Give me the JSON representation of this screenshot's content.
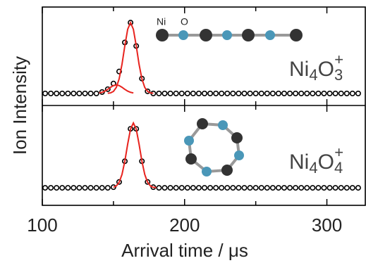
{
  "chart_data": [
    {
      "type": "scatter",
      "ylabel": "Ion Intensity",
      "formula": [
        "Ni",
        "4",
        "O",
        "3",
        "+"
      ],
      "atom_labels": [
        "Ni",
        "O"
      ],
      "xlim": [
        100,
        327
      ],
      "ylim": [
        -0.17,
        1.22
      ],
      "series": [
        {
          "mode": "markers",
          "color": "#000000",
          "x": [
            102,
            106,
            110,
            114,
            118,
            122,
            126,
            130,
            134,
            138,
            142,
            146,
            150,
            154,
            158,
            162,
            166,
            170,
            174,
            178,
            182,
            186,
            190,
            194,
            198,
            202,
            206,
            210,
            214,
            218,
            222,
            226,
            230,
            234,
            238,
            242,
            246,
            250,
            254,
            258,
            262,
            266,
            270,
            274,
            278,
            282,
            286,
            290,
            294,
            298,
            302,
            306,
            310,
            314,
            318,
            322
          ],
          "values": [
            0,
            0,
            0,
            0,
            0,
            0,
            0,
            0,
            0,
            0,
            0.02,
            0.06,
            0.14,
            0.31,
            0.72,
            1.0,
            0.67,
            0.21,
            0.03,
            0,
            0,
            0,
            0,
            0,
            0,
            0,
            0,
            0,
            0,
            0,
            0,
            0,
            0,
            0,
            0,
            0,
            0,
            0,
            0,
            0,
            0,
            0,
            0,
            0,
            0,
            0,
            0,
            0,
            0,
            0,
            0,
            0,
            0,
            0,
            0,
            0
          ]
        },
        {
          "mode": "line",
          "color": "#e8231e",
          "x": [
            146,
            148,
            150,
            152,
            154,
            156,
            158,
            160,
            162,
            164,
            166,
            168,
            170,
            172,
            174,
            176,
            178
          ],
          "values": [
            0.002,
            0.008,
            0.029,
            0.085,
            0.206,
            0.411,
            0.674,
            0.906,
            1,
            0.906,
            0.674,
            0.411,
            0.206,
            0.085,
            0.029,
            0.008,
            0.002
          ]
        },
        {
          "mode": "line",
          "color": "#e8231e",
          "x": [
            140,
            142,
            144,
            146,
            148,
            150,
            152,
            154,
            156,
            158,
            160,
            162,
            164
          ],
          "values": [
            0.007,
            0.016,
            0.033,
            0.058,
            0.087,
            0.111,
            0.12,
            0.111,
            0.087,
            0.058,
            0.033,
            0.016,
            0.007
          ]
        }
      ]
    },
    {
      "type": "scatter",
      "xlabel": "Arrival time / μs",
      "formula": [
        "Ni",
        "4",
        "O",
        "4",
        "+"
      ],
      "xlim": [
        100,
        327
      ],
      "ylim": [
        -0.27,
        1.27
      ],
      "xticks": [
        100,
        200,
        300
      ],
      "xminor": [
        150,
        250
      ],
      "series": [
        {
          "mode": "markers",
          "color": "#000000",
          "x": [
            102,
            106,
            110,
            114,
            118,
            122,
            126,
            130,
            134,
            138,
            142,
            146,
            150,
            154,
            158,
            162,
            166,
            170,
            174,
            178,
            182,
            186,
            190,
            194,
            198,
            202,
            206,
            210,
            214,
            218,
            222,
            226,
            230,
            234,
            238,
            242,
            246,
            250,
            254,
            258,
            262,
            266,
            270,
            274,
            278,
            282,
            286,
            290,
            294,
            298,
            302,
            306,
            310,
            314,
            318,
            322
          ],
          "values": [
            0,
            0,
            0,
            0,
            0,
            0,
            0,
            0,
            0,
            0,
            0,
            0,
            0.01,
            0.09,
            0.41,
            0.91,
            0.91,
            0.41,
            0.09,
            0.01,
            0,
            0,
            0,
            0,
            0,
            0,
            0,
            0,
            0,
            0,
            0,
            0,
            0,
            0,
            0,
            0,
            0,
            0,
            0,
            0,
            0,
            0,
            0,
            0,
            0,
            0,
            0,
            0,
            0,
            0,
            0,
            0,
            0,
            0,
            0,
            0
          ]
        },
        {
          "mode": "line",
          "color": "#e8231e",
          "x": [
            150,
            152,
            154,
            156,
            158,
            160,
            162,
            164,
            166,
            168,
            170,
            172,
            174,
            176,
            178,
            180
          ],
          "values": [
            0.008,
            0.029,
            0.085,
            0.206,
            0.411,
            0.674,
            0.906,
            1,
            0.906,
            0.674,
            0.411,
            0.206,
            0.085,
            0.029,
            0.008,
            0.002
          ]
        }
      ]
    }
  ]
}
